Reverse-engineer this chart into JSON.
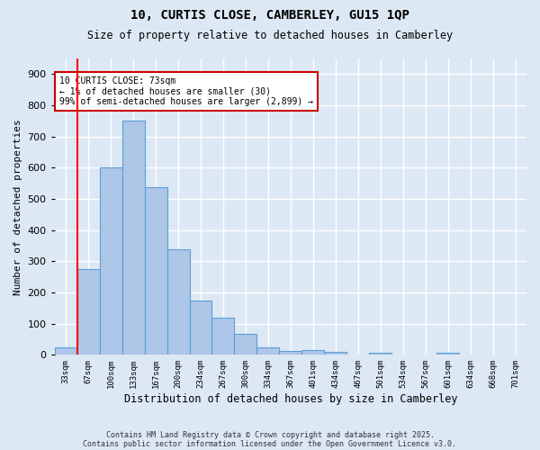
{
  "title_line1": "10, CURTIS CLOSE, CAMBERLEY, GU15 1QP",
  "title_line2": "Size of property relative to detached houses in Camberley",
  "xlabel": "Distribution of detached houses by size in Camberley",
  "ylabel": "Number of detached properties",
  "categories": [
    "33sqm",
    "67sqm",
    "100sqm",
    "133sqm",
    "167sqm",
    "200sqm",
    "234sqm",
    "267sqm",
    "300sqm",
    "334sqm",
    "367sqm",
    "401sqm",
    "434sqm",
    "467sqm",
    "501sqm",
    "534sqm",
    "567sqm",
    "601sqm",
    "634sqm",
    "668sqm",
    "701sqm"
  ],
  "values": [
    25,
    275,
    600,
    750,
    538,
    338,
    175,
    120,
    68,
    23,
    12,
    15,
    10,
    0,
    8,
    0,
    0,
    8,
    0,
    0,
    0
  ],
  "bar_color": "#aec6e8",
  "bar_edge_color": "#5a9fd4",
  "background_color": "#dde8f5",
  "grid_color": "#ffffff",
  "red_line_x": 1,
  "annotation_text": "10 CURTIS CLOSE: 73sqm\n← 1% of detached houses are smaller (30)\n99% of semi-detached houses are larger (2,899) →",
  "annotation_box_color": "#ffffff",
  "annotation_box_edge": "#cc0000",
  "ylim": [
    0,
    950
  ],
  "yticks": [
    0,
    100,
    200,
    300,
    400,
    500,
    600,
    700,
    800,
    900
  ],
  "footer_line1": "Contains HM Land Registry data © Crown copyright and database right 2025.",
  "footer_line2": "Contains public sector information licensed under the Open Government Licence v3.0."
}
